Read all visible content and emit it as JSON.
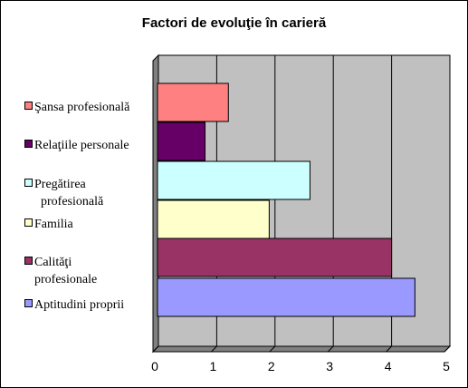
{
  "chart_data": {
    "type": "bar",
    "orientation": "horizontal",
    "title": "Factori de evoluţie în carieră",
    "categories": [
      "Şansa profesională",
      "Relaţiile personale",
      "Pregătirea profesională",
      "Familia",
      "Calităţi profesionale",
      "Aptitudini proprii"
    ],
    "values": [
      1.2,
      0.8,
      2.6,
      1.9,
      4.0,
      4.4
    ],
    "colors": [
      "#ff8080",
      "#660066",
      "#ccffff",
      "#ffffcc",
      "#993366",
      "#9999ff"
    ],
    "xlim": [
      0,
      5
    ],
    "xticks": [
      "0",
      "1",
      "2",
      "3",
      "4",
      "5"
    ],
    "grid": true,
    "plot_background": "#c0c0c0",
    "legend_position": "left"
  },
  "legend": {
    "items": [
      {
        "lines": [
          "Şansa profesională"
        ]
      },
      {
        "lines": [
          "Relaţiile personale"
        ]
      },
      {
        "lines": [
          "Pregătirea",
          "  profesională"
        ]
      },
      {
        "lines": [
          "Familia"
        ]
      },
      {
        "lines": [
          "Calităţi",
          "profesionale"
        ]
      },
      {
        "lines": [
          "Aptitudini proprii"
        ]
      }
    ]
  }
}
